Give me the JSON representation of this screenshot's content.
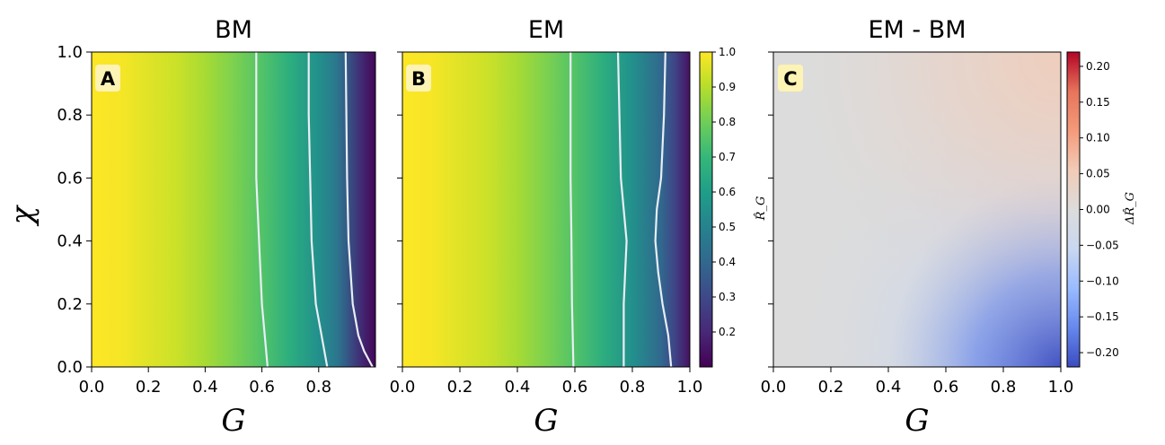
{
  "colors": {
    "viridis_stops": [
      "#440154",
      "#482878",
      "#3e4989",
      "#31688e",
      "#26828e",
      "#1f9e89",
      "#35b779",
      "#6ece58",
      "#b5de2b",
      "#fde725"
    ],
    "diverging_stops": [
      "#3b4cc0",
      "#6788ee",
      "#9abbff",
      "#c9d7f0",
      "#dcdcdc",
      "#f2cbb7",
      "#f49a7b",
      "#e7745b",
      "#b40426"
    ],
    "neutral": "#dcdcdc",
    "badge_bg": "#fdf3b4",
    "contour": "#e9eef5"
  },
  "chart_data": [
    {
      "id": "A",
      "type": "heatmap",
      "title": "BM",
      "badge": "A",
      "xlabel": "G",
      "ylabel": "χ",
      "xlim": [
        0.0,
        1.0
      ],
      "ylim": [
        0.0,
        1.0
      ],
      "xticks": [
        "0.0",
        "0.2",
        "0.4",
        "0.6",
        "0.8"
      ],
      "yticks": [
        "0.0",
        "0.2",
        "0.4",
        "0.6",
        "0.8",
        "1.0"
      ],
      "colormap": "viridis",
      "color_values_at_G": {
        "G": [
          0.0,
          0.1,
          0.2,
          0.3,
          0.4,
          0.5,
          0.6,
          0.7,
          0.8,
          0.9,
          0.95,
          1.0
        ],
        "value": [
          1.0,
          0.99,
          0.96,
          0.93,
          0.88,
          0.82,
          0.75,
          0.66,
          0.55,
          0.4,
          0.28,
          0.14
        ]
      },
      "contours": [
        {
          "G_at_chi": [
            [
              0.0,
              0.62
            ],
            [
              0.2,
              0.6
            ],
            [
              0.4,
              0.59
            ],
            [
              0.6,
              0.58
            ],
            [
              0.8,
              0.58
            ],
            [
              1.0,
              0.58
            ]
          ]
        },
        {
          "G_at_chi": [
            [
              0.0,
              0.83
            ],
            [
              0.1,
              0.81
            ],
            [
              0.2,
              0.79
            ],
            [
              0.4,
              0.775
            ],
            [
              0.6,
              0.77
            ],
            [
              0.8,
              0.765
            ],
            [
              1.0,
              0.765
            ]
          ]
        },
        {
          "G_at_chi": [
            [
              0.0,
              0.99
            ],
            [
              0.05,
              0.96
            ],
            [
              0.1,
              0.94
            ],
            [
              0.2,
              0.92
            ],
            [
              0.4,
              0.905
            ],
            [
              0.6,
              0.9
            ],
            [
              1.0,
              0.895
            ]
          ]
        }
      ]
    },
    {
      "id": "B",
      "type": "heatmap",
      "title": "EM",
      "badge": "B",
      "xlabel": "G",
      "ylabel": "",
      "xlim": [
        0.0,
        1.0
      ],
      "ylim": [
        0.0,
        1.0
      ],
      "xticks": [
        "0.0",
        "0.2",
        "0.4",
        "0.6",
        "0.8",
        "1.0"
      ],
      "colormap": "viridis",
      "color_values_at_G": {
        "G": [
          0.0,
          0.1,
          0.2,
          0.3,
          0.4,
          0.5,
          0.6,
          0.7,
          0.8,
          0.9,
          0.95,
          1.0
        ],
        "value": [
          1.0,
          0.99,
          0.96,
          0.93,
          0.88,
          0.82,
          0.75,
          0.66,
          0.55,
          0.4,
          0.28,
          0.14
        ]
      },
      "contours": [
        {
          "G_at_chi": [
            [
              0.0,
              0.595
            ],
            [
              0.2,
              0.59
            ],
            [
              0.4,
              0.588
            ],
            [
              0.6,
              0.585
            ],
            [
              0.8,
              0.585
            ],
            [
              1.0,
              0.585
            ]
          ]
        },
        {
          "G_at_chi": [
            [
              0.0,
              0.77
            ],
            [
              0.2,
              0.77
            ],
            [
              0.4,
              0.78
            ],
            [
              0.5,
              0.77
            ],
            [
              0.6,
              0.76
            ],
            [
              0.8,
              0.755
            ],
            [
              1.0,
              0.75
            ]
          ]
        },
        {
          "G_at_chi": [
            [
              0.0,
              0.935
            ],
            [
              0.1,
              0.925
            ],
            [
              0.2,
              0.905
            ],
            [
              0.3,
              0.89
            ],
            [
              0.4,
              0.88
            ],
            [
              0.5,
              0.885
            ],
            [
              0.6,
              0.9
            ],
            [
              0.8,
              0.91
            ],
            [
              1.0,
              0.915
            ]
          ]
        }
      ],
      "colorbar": {
        "label": "R̂_G",
        "range": [
          0.1,
          1.0
        ],
        "ticks": [
          "1.0",
          "0.9",
          "0.8",
          "0.7",
          "0.6",
          "0.5",
          "0.4",
          "0.3",
          "0.2"
        ]
      }
    },
    {
      "id": "C",
      "type": "heatmap",
      "title": "EM - BM",
      "badge": "C",
      "xlabel": "G",
      "ylabel": "",
      "xlim": [
        0.0,
        1.0
      ],
      "ylim": [
        0.0,
        1.0
      ],
      "xticks": [
        "0.0",
        "0.2",
        "0.4",
        "0.6",
        "0.8",
        "1.0"
      ],
      "colormap": "coolwarm",
      "hotspots": [
        {
          "G": 1.0,
          "chi": 0.0,
          "value": -0.2
        },
        {
          "G": 1.0,
          "chi": 1.0,
          "value": 0.05
        }
      ],
      "colorbar": {
        "label": "ΔR̂_G",
        "range": [
          -0.22,
          0.22
        ],
        "ticks": [
          "0.20",
          "0.15",
          "0.10",
          "0.05",
          "0.00",
          "−0.05",
          "−0.10",
          "−0.15",
          "−0.20"
        ]
      }
    }
  ]
}
